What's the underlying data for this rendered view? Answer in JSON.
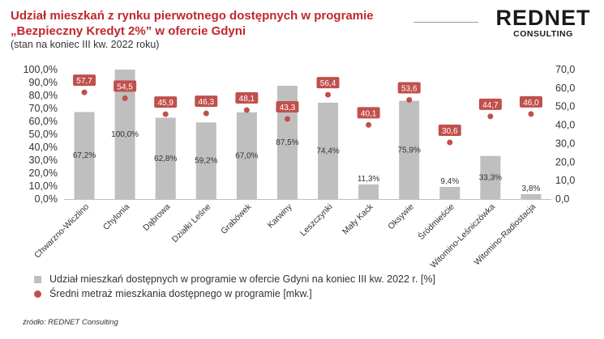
{
  "header": {
    "title_line1": "Udział mieszkań z rynku pierwotnego dostępnych w programie",
    "title_line2": "„Bezpieczny Kredyt 2%” w ofercie Gdyni",
    "subtitle": "(stan na koniec III kw. 2022 roku)"
  },
  "logo": {
    "main": "REDNET",
    "sub": "CONSULTING"
  },
  "source": "źródło: REDNET Consulting",
  "colors": {
    "accent": "#c0272d",
    "bar": "#bfbfbf",
    "marker": "#c0504d"
  },
  "chart_data": {
    "type": "bar",
    "categories": [
      "Chwarzno-Wiczlino",
      "Chylonia",
      "Dąbrowa",
      "Działki Leśne",
      "Grabówek",
      "Karwiny",
      "Leszczynki",
      "Mały Kack",
      "Oksywie",
      "Śródmieście",
      "Witomino-Leśniczówka",
      "Witomino-Radiostacja"
    ],
    "series": [
      {
        "name": "Udział mieszkań dostępnych w programie w ofercie Gdyni na koniec III kw. 2022 r. [%]",
        "type": "bar",
        "axis": "left",
        "values": [
          67.2,
          100.0,
          62.8,
          59.2,
          67.0,
          87.5,
          74.4,
          11.3,
          75.9,
          9.4,
          33.3,
          3.8
        ],
        "labels": [
          "67,2%",
          "100,0%",
          "62,8%",
          "59,2%",
          "67,0%",
          "87,5%",
          "74,4%",
          "11,3%",
          "75,9%",
          "9,4%",
          "33,3%",
          "3,8%"
        ]
      },
      {
        "name": "Średni metraż mieszkania dostępnego w programie [mkw.]",
        "type": "scatter",
        "axis": "right",
        "values": [
          57.7,
          54.5,
          45.9,
          46.3,
          48.1,
          43.3,
          56.4,
          40.1,
          53.6,
          30.6,
          44.7,
          46.0
        ],
        "labels": [
          "57,7",
          "54,5",
          "45,9",
          "46,3",
          "48,1",
          "43,3",
          "56,4",
          "40,1",
          "53,6",
          "30,6",
          "44,7",
          "46,0"
        ]
      }
    ],
    "y_left": {
      "ylim": [
        0,
        100
      ],
      "ticks": [
        "0,0%",
        "10,0%",
        "20,0%",
        "30,0%",
        "40,0%",
        "50,0%",
        "60,0%",
        "70,0%",
        "80,0%",
        "90,0%",
        "100,0%"
      ]
    },
    "y_right": {
      "ylim": [
        0,
        70
      ],
      "ticks": [
        "0,0",
        "10,0",
        "20,0",
        "30,0",
        "40,0",
        "50,0",
        "60,0",
        "70,0"
      ]
    },
    "grid": false,
    "legend_position": "bottom-left"
  }
}
